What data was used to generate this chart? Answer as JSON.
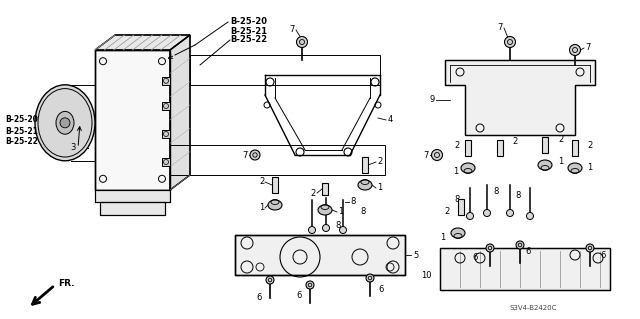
{
  "bg_color": "#ffffff",
  "line_color": "#000000",
  "part_labels_top": [
    "B-25-20",
    "B-25-21",
    "B-25-22"
  ],
  "part_labels_left": [
    "B-25-20",
    "B-25-21",
    "B-25-22"
  ],
  "diagram_code": "S3V4-B2420C",
  "fr_label": "FR.",
  "figsize": [
    6.4,
    3.19
  ],
  "dpi": 100
}
